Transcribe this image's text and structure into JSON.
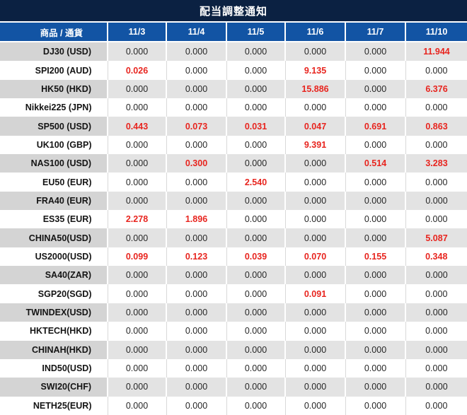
{
  "title": "配当調整通知",
  "colors": {
    "title_bar": "#0b2142",
    "header_row": "#1254a4",
    "highlight_red": "#e8251f",
    "row_gray_label": "#d4d4d4",
    "row_gray_value": "#e3e3e3"
  },
  "chart_data": {
    "type": "table",
    "title": "配当調整通知",
    "label_header": "商品 / 通貨",
    "date_headers": [
      "11/3",
      "11/4",
      "11/5",
      "11/6",
      "11/7",
      "11/10"
    ],
    "rows": [
      {
        "label": "DJ30 (USD)",
        "values": [
          "0.000",
          "0.000",
          "0.000",
          "0.000",
          "0.000",
          "11.944"
        ],
        "highlighted": [
          false,
          false,
          false,
          false,
          false,
          true
        ]
      },
      {
        "label": "SPI200 (AUD)",
        "values": [
          "0.026",
          "0.000",
          "0.000",
          "9.135",
          "0.000",
          "0.000"
        ],
        "highlighted": [
          true,
          false,
          false,
          true,
          false,
          false
        ]
      },
      {
        "label": "HK50 (HKD)",
        "values": [
          "0.000",
          "0.000",
          "0.000",
          "15.886",
          "0.000",
          "6.376"
        ],
        "highlighted": [
          false,
          false,
          false,
          true,
          false,
          true
        ]
      },
      {
        "label": "Nikkei225 (JPN)",
        "values": [
          "0.000",
          "0.000",
          "0.000",
          "0.000",
          "0.000",
          "0.000"
        ],
        "highlighted": [
          false,
          false,
          false,
          false,
          false,
          false
        ]
      },
      {
        "label": "SP500 (USD)",
        "values": [
          "0.443",
          "0.073",
          "0.031",
          "0.047",
          "0.691",
          "0.863"
        ],
        "highlighted": [
          true,
          true,
          true,
          true,
          true,
          true
        ]
      },
      {
        "label": "UK100 (GBP)",
        "values": [
          "0.000",
          "0.000",
          "0.000",
          "9.391",
          "0.000",
          "0.000"
        ],
        "highlighted": [
          false,
          false,
          false,
          true,
          false,
          false
        ]
      },
      {
        "label": "NAS100 (USD)",
        "values": [
          "0.000",
          "0.300",
          "0.000",
          "0.000",
          "0.514",
          "3.283"
        ],
        "highlighted": [
          false,
          true,
          false,
          false,
          true,
          true
        ]
      },
      {
        "label": "EU50 (EUR)",
        "values": [
          "0.000",
          "0.000",
          "2.540",
          "0.000",
          "0.000",
          "0.000"
        ],
        "highlighted": [
          false,
          false,
          true,
          false,
          false,
          false
        ]
      },
      {
        "label": "FRA40 (EUR)",
        "values": [
          "0.000",
          "0.000",
          "0.000",
          "0.000",
          "0.000",
          "0.000"
        ],
        "highlighted": [
          false,
          false,
          false,
          false,
          false,
          false
        ]
      },
      {
        "label": "ES35 (EUR)",
        "values": [
          "2.278",
          "1.896",
          "0.000",
          "0.000",
          "0.000",
          "0.000"
        ],
        "highlighted": [
          true,
          true,
          false,
          false,
          false,
          false
        ]
      },
      {
        "label": "CHINA50(USD)",
        "values": [
          "0.000",
          "0.000",
          "0.000",
          "0.000",
          "0.000",
          "5.087"
        ],
        "highlighted": [
          false,
          false,
          false,
          false,
          false,
          true
        ]
      },
      {
        "label": "US2000(USD)",
        "values": [
          "0.099",
          "0.123",
          "0.039",
          "0.070",
          "0.155",
          "0.348"
        ],
        "highlighted": [
          true,
          true,
          true,
          true,
          true,
          true
        ]
      },
      {
        "label": "SA40(ZAR)",
        "values": [
          "0.000",
          "0.000",
          "0.000",
          "0.000",
          "0.000",
          "0.000"
        ],
        "highlighted": [
          false,
          false,
          false,
          false,
          false,
          false
        ]
      },
      {
        "label": "SGP20(SGD)",
        "values": [
          "0.000",
          "0.000",
          "0.000",
          "0.091",
          "0.000",
          "0.000"
        ],
        "highlighted": [
          false,
          false,
          false,
          true,
          false,
          false
        ]
      },
      {
        "label": "TWINDEX(USD)",
        "values": [
          "0.000",
          "0.000",
          "0.000",
          "0.000",
          "0.000",
          "0.000"
        ],
        "highlighted": [
          false,
          false,
          false,
          false,
          false,
          false
        ]
      },
      {
        "label": "HKTECH(HKD)",
        "values": [
          "0.000",
          "0.000",
          "0.000",
          "0.000",
          "0.000",
          "0.000"
        ],
        "highlighted": [
          false,
          false,
          false,
          false,
          false,
          false
        ]
      },
      {
        "label": "CHINAH(HKD)",
        "values": [
          "0.000",
          "0.000",
          "0.000",
          "0.000",
          "0.000",
          "0.000"
        ],
        "highlighted": [
          false,
          false,
          false,
          false,
          false,
          false
        ]
      },
      {
        "label": "IND50(USD)",
        "values": [
          "0.000",
          "0.000",
          "0.000",
          "0.000",
          "0.000",
          "0.000"
        ],
        "highlighted": [
          false,
          false,
          false,
          false,
          false,
          false
        ]
      },
      {
        "label": "SWI20(CHF)",
        "values": [
          "0.000",
          "0.000",
          "0.000",
          "0.000",
          "0.000",
          "0.000"
        ],
        "highlighted": [
          false,
          false,
          false,
          false,
          false,
          false
        ]
      },
      {
        "label": "NETH25(EUR)",
        "values": [
          "0.000",
          "0.000",
          "0.000",
          "0.000",
          "0.000",
          "0.000"
        ],
        "highlighted": [
          false,
          false,
          false,
          false,
          false,
          false
        ]
      }
    ]
  }
}
